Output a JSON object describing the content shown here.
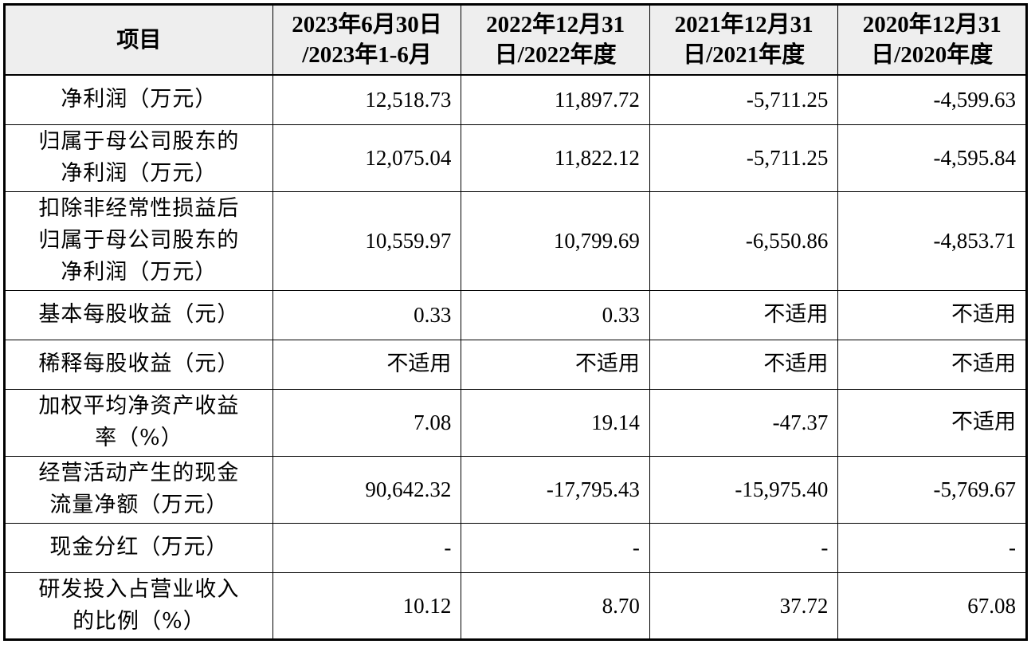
{
  "table": {
    "header": {
      "item": "项目",
      "periods": [
        {
          "line1": "2023年6月30日",
          "line2": "/2023年1-6月"
        },
        {
          "line1": "2022年12月31",
          "line2": "日/2022年度"
        },
        {
          "line1": "2021年12月31",
          "line2": "日/2021年度"
        },
        {
          "line1": "2020年12月31",
          "line2": "日/2020年度"
        }
      ]
    },
    "rows": [
      {
        "label_lines": [
          "净利润（万元）"
        ],
        "values": [
          "12,518.73",
          "11,897.72",
          "-5,711.25",
          "-4,599.63"
        ]
      },
      {
        "label_lines": [
          "归属于母公司股东的",
          "净利润（万元）"
        ],
        "values": [
          "12,075.04",
          "11,822.12",
          "-5,711.25",
          "-4,595.84"
        ]
      },
      {
        "label_lines": [
          "扣除非经常性损益后",
          "归属于母公司股东的",
          "净利润（万元）"
        ],
        "values": [
          "10,559.97",
          "10,799.69",
          "-6,550.86",
          "-4,853.71"
        ]
      },
      {
        "label_lines": [
          "基本每股收益（元）"
        ],
        "values": [
          "0.33",
          "0.33",
          "不适用",
          "不适用"
        ]
      },
      {
        "label_lines": [
          "稀释每股收益（元）"
        ],
        "values": [
          "不适用",
          "不适用",
          "不适用",
          "不适用"
        ]
      },
      {
        "label_lines": [
          "加权平均净资产收益",
          "率（%）"
        ],
        "values": [
          "7.08",
          "19.14",
          "-47.37",
          "不适用"
        ]
      },
      {
        "label_lines": [
          "经营活动产生的现金",
          "流量净额（万元）"
        ],
        "values": [
          "90,642.32",
          "-17,795.43",
          "-15,975.40",
          "-5,769.67"
        ]
      },
      {
        "label_lines": [
          "现金分红（万元）"
        ],
        "values": [
          "-",
          "-",
          "-",
          "-"
        ]
      },
      {
        "label_lines": [
          "研发投入占营业收入",
          "的比例（%）"
        ],
        "values": [
          "10.12",
          "8.70",
          "37.72",
          "67.08"
        ]
      }
    ]
  }
}
